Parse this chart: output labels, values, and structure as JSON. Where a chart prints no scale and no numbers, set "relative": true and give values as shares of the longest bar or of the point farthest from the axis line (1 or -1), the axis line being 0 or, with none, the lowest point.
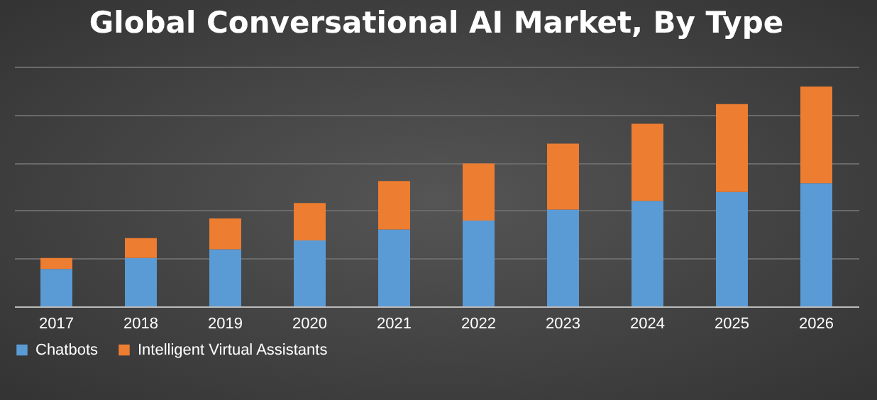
{
  "chart_data": {
    "type": "bar",
    "title": "Global Conversational AI Market, By Type",
    "categories": [
      "2017",
      "2018",
      "2019",
      "2020",
      "2021",
      "2022",
      "2023",
      "2024",
      "2025",
      "2026"
    ],
    "series": [
      {
        "name": "Chatbots",
        "color": "#5b9bd5",
        "values": [
          0.17,
          0.22,
          0.26,
          0.3,
          0.35,
          0.39,
          0.44,
          0.48,
          0.52,
          0.56
        ]
      },
      {
        "name": "Intelligent Virtual Assistants",
        "color": "#ed7d31",
        "values": [
          0.05,
          0.09,
          0.14,
          0.17,
          0.22,
          0.26,
          0.3,
          0.35,
          0.4,
          0.44
        ]
      }
    ],
    "stacked": true,
    "relative": true,
    "grid": "y",
    "legend": "bottom"
  }
}
